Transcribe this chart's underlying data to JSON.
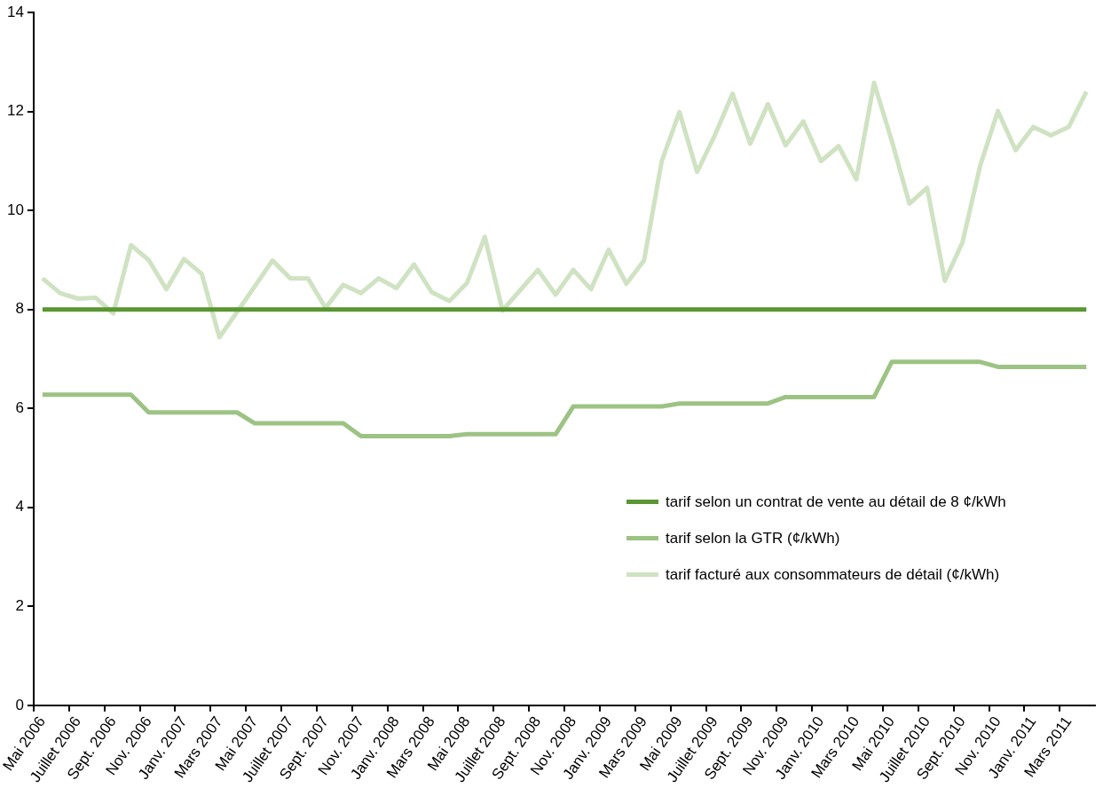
{
  "chart_data": {
    "type": "line",
    "categories": [
      "Mai 2006",
      null,
      "Juillet 2006",
      null,
      "Sept. 2006",
      null,
      "Nov. 2006",
      null,
      "Janv. 2007",
      null,
      "Mars 2007",
      null,
      "Mai 2007",
      null,
      "Juillet 2007",
      null,
      "Sept. 2007",
      null,
      "Nov. 2007",
      null,
      "Janv. 2008",
      null,
      "Mars 2008",
      null,
      "Mai 2008",
      null,
      "Juillet 2008",
      null,
      "Sept. 2008",
      null,
      "Nov. 2008",
      null,
      "Janv. 2009",
      null,
      "Mars 2009",
      null,
      "Mai 2009",
      null,
      "Juillet 2009",
      null,
      "Sept. 2009",
      null,
      "Nov. 2009",
      null,
      "Janv. 2010",
      null,
      "Mars 2010",
      null,
      "Mai 2010",
      null,
      "Juillet 2010",
      null,
      "Sept. 2010",
      null,
      "Nov. 2010",
      null,
      "Janv. 2011",
      null,
      "Mars 2011",
      null
    ],
    "series": [
      {
        "name": "tarif selon un contrat de vente au détail de 8 ¢/kWh",
        "color": "#5a9632",
        "values": [
          8,
          8,
          8,
          8,
          8,
          8,
          8,
          8,
          8,
          8,
          8,
          8,
          8,
          8,
          8,
          8,
          8,
          8,
          8,
          8,
          8,
          8,
          8,
          8,
          8,
          8,
          8,
          8,
          8,
          8,
          8,
          8,
          8,
          8,
          8,
          8,
          8,
          8,
          8,
          8,
          8,
          8,
          8,
          8,
          8,
          8,
          8,
          8,
          8,
          8,
          8,
          8,
          8,
          8,
          8,
          8,
          8,
          8,
          8,
          8
        ]
      },
      {
        "name": "tarif selon la GTR (¢/kWh)",
        "color": "#9dc384",
        "values": [
          6.28,
          6.28,
          6.28,
          6.28,
          6.28,
          6.28,
          5.92,
          5.92,
          5.92,
          5.92,
          5.92,
          5.92,
          5.7,
          5.7,
          5.7,
          5.7,
          5.7,
          5.7,
          5.44,
          5.44,
          5.44,
          5.44,
          5.44,
          5.44,
          5.48,
          5.48,
          5.48,
          5.48,
          5.48,
          5.48,
          6.04,
          6.04,
          6.04,
          6.04,
          6.04,
          6.04,
          6.1,
          6.1,
          6.1,
          6.1,
          6.1,
          6.1,
          6.23,
          6.23,
          6.23,
          6.23,
          6.23,
          6.23,
          6.94,
          6.94,
          6.94,
          6.94,
          6.94,
          6.94,
          6.84,
          6.84,
          6.84,
          6.84,
          6.84,
          6.84
        ]
      },
      {
        "name": "tarif facturé aux consommateurs de détail (¢/kWh)",
        "color": "#cfe2c2",
        "values": [
          8.63,
          8.33,
          8.22,
          8.24,
          7.92,
          9.3,
          9.0,
          8.41,
          9.02,
          8.72,
          7.44,
          7.95,
          8.47,
          8.99,
          8.63,
          8.63,
          8.03,
          8.5,
          8.33,
          8.63,
          8.43,
          8.91,
          8.35,
          8.17,
          8.54,
          9.47,
          7.98,
          8.39,
          8.8,
          8.3,
          8.8,
          8.41,
          9.21,
          8.52,
          8.99,
          11.0,
          11.99,
          10.78,
          11.52,
          12.36,
          11.35,
          12.15,
          11.32,
          11.8,
          11.0,
          11.3,
          10.63,
          12.58,
          11.41,
          10.14,
          10.46,
          8.58,
          9.36,
          10.91,
          12.01,
          11.22,
          11.69,
          11.52,
          11.69,
          12.4
        ]
      }
    ],
    "ylim": [
      0,
      14
    ],
    "yticks": [
      0,
      2,
      4,
      6,
      8,
      10,
      12,
      14
    ],
    "legend": "right",
    "marker": "none",
    "line_style": "solid"
  }
}
